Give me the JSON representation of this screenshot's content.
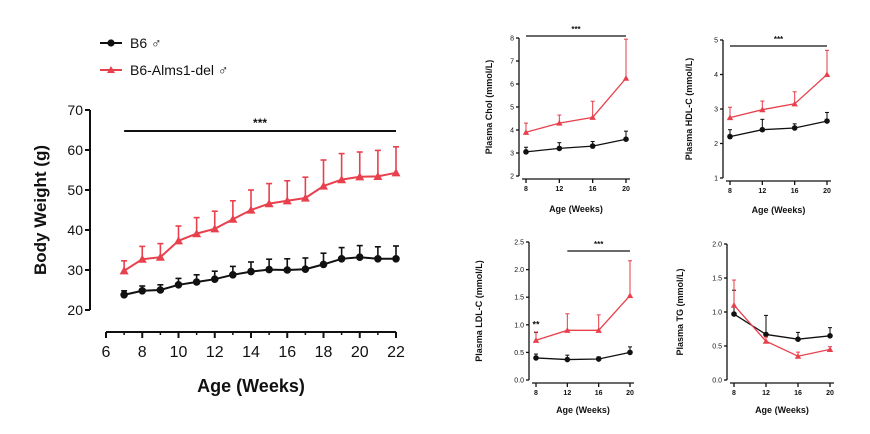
{
  "colors": {
    "b6": "#111111",
    "del": "#e8414d",
    "axis": "#111111"
  },
  "legend": {
    "b6": "B6 ♂",
    "del": "B6-Alms1-del ♂"
  },
  "chart_data": [
    {
      "id": "bw",
      "type": "line",
      "xlabel": "Age (Weeks)",
      "ylabel": "Body Weight (g)",
      "xlim": [
        6,
        22
      ],
      "ylim": [
        20,
        70
      ],
      "xticks": [
        6,
        8,
        10,
        12,
        14,
        16,
        18,
        20,
        22
      ],
      "yticks": [
        20,
        30,
        40,
        50,
        60,
        70
      ],
      "annotations": [
        {
          "text": "***",
          "x1": 7,
          "x2": 22
        }
      ],
      "series": [
        {
          "name": "B6 ♂",
          "key": "b6",
          "x": [
            7,
            8,
            9,
            10,
            11,
            12,
            13,
            14,
            15,
            16,
            17,
            18,
            19,
            20,
            21,
            22
          ],
          "y": [
            23.8,
            24.8,
            25,
            26.3,
            27,
            27.7,
            28.8,
            29.6,
            30.1,
            30,
            30.2,
            31.4,
            32.8,
            33.2,
            32.8,
            32.8
          ],
          "err": [
            1,
            1.2,
            1.3,
            1.6,
            1.8,
            2,
            2.1,
            2.4,
            2.6,
            2.8,
            2.8,
            2.8,
            2.8,
            2.9,
            3,
            3.2
          ]
        },
        {
          "name": "B6-Alms1-del ♂",
          "key": "del",
          "x": [
            7,
            8,
            9,
            10,
            11,
            12,
            13,
            14,
            15,
            16,
            17,
            18,
            19,
            20,
            21,
            22
          ],
          "y": [
            29.8,
            32.7,
            33.2,
            37.3,
            39.1,
            40.3,
            42.7,
            45,
            46.6,
            47.3,
            48,
            51,
            52.6,
            53.3,
            53.4,
            54.3
          ],
          "err": [
            2.5,
            3.2,
            3.4,
            3.7,
            4,
            4.4,
            4.6,
            5,
            5,
            5,
            5.2,
            6.5,
            6.5,
            6.2,
            6.5,
            6.5
          ]
        }
      ]
    },
    {
      "id": "chol",
      "type": "line",
      "xlabel": "Age (Weeks)",
      "ylabel": "Plasma Chol (mmol/L)",
      "xlim": [
        8,
        20
      ],
      "ylim": [
        2,
        8
      ],
      "xticks": [
        8,
        12,
        16,
        20
      ],
      "yticks": [
        2,
        3,
        4,
        5,
        6,
        7,
        8
      ],
      "annotations": [
        {
          "text": "***",
          "x1": 8,
          "x2": 20
        }
      ],
      "series": [
        {
          "name": "B6 ♂",
          "key": "b6",
          "x": [
            8,
            12,
            16,
            20
          ],
          "y": [
            3.05,
            3.2,
            3.3,
            3.6
          ],
          "err": [
            0.2,
            0.25,
            0.2,
            0.35
          ]
        },
        {
          "name": "B6-Alms1-del ♂",
          "key": "del",
          "x": [
            8,
            12,
            16,
            20
          ],
          "y": [
            3.9,
            4.3,
            4.55,
            6.25
          ],
          "err": [
            0.4,
            0.35,
            0.7,
            1.7
          ]
        }
      ]
    },
    {
      "id": "hdl",
      "type": "line",
      "xlabel": "Age (Weeks)",
      "ylabel": "Plasma HDL-C (mmol/L)",
      "xlim": [
        8,
        20
      ],
      "ylim": [
        1,
        5
      ],
      "xticks": [
        8,
        12,
        16,
        20
      ],
      "yticks": [
        1,
        2,
        3,
        4,
        5
      ],
      "annotations": [
        {
          "text": "***",
          "x1": 8,
          "x2": 20
        }
      ],
      "series": [
        {
          "name": "B6 ♂",
          "key": "b6",
          "x": [
            8,
            12,
            16,
            20
          ],
          "y": [
            2.2,
            2.4,
            2.45,
            2.65
          ],
          "err": [
            0.2,
            0.3,
            0.12,
            0.25
          ]
        },
        {
          "name": "B6-Alms1-del ♂",
          "key": "del",
          "x": [
            8,
            12,
            16,
            20
          ],
          "y": [
            2.75,
            2.98,
            3.15,
            4.0
          ],
          "err": [
            0.3,
            0.25,
            0.35,
            0.7
          ]
        }
      ]
    },
    {
      "id": "ldl",
      "type": "line",
      "xlabel": "Age (Weeks)",
      "ylabel": "Plasma LDL-C (mmol/L)",
      "xlim": [
        8,
        20
      ],
      "ylim": [
        0,
        2.5
      ],
      "xticks": [
        8,
        12,
        16,
        20
      ],
      "yticks": [
        "0.0",
        "0.5",
        "1.0",
        "1.5",
        "2.0",
        "2.5"
      ],
      "annotations": [
        {
          "text": "***",
          "x1": 12,
          "x2": 20
        },
        {
          "text": "**",
          "x": 8,
          "y": 0.95
        }
      ],
      "series": [
        {
          "name": "B6 ♂",
          "key": "b6",
          "x": [
            8,
            12,
            16,
            20
          ],
          "y": [
            0.4,
            0.37,
            0.38,
            0.5
          ],
          "err": [
            0.07,
            0.08,
            0.04,
            0.1
          ]
        },
        {
          "name": "B6-Alms1-del ♂",
          "key": "del",
          "x": [
            8,
            12,
            16,
            20
          ],
          "y": [
            0.72,
            0.9,
            0.9,
            1.53
          ],
          "err": [
            0.15,
            0.3,
            0.28,
            0.63
          ]
        }
      ]
    },
    {
      "id": "tg",
      "type": "line",
      "xlabel": "Age (Weeks)",
      "ylabel": "Plasma TG (mmol/L)",
      "xlim": [
        8,
        20
      ],
      "ylim": [
        0,
        2
      ],
      "xticks": [
        8,
        12,
        16,
        20
      ],
      "yticks": [
        "0.0",
        "0.5",
        "1.0",
        "1.5",
        "2.0"
      ],
      "annotations": [],
      "series": [
        {
          "name": "B6 ♂",
          "key": "b6",
          "x": [
            8,
            12,
            16,
            20
          ],
          "y": [
            0.97,
            0.67,
            0.6,
            0.65
          ],
          "err": [
            0.35,
            0.28,
            0.1,
            0.12
          ]
        },
        {
          "name": "B6-Alms1-del ♂",
          "key": "del",
          "x": [
            8,
            12,
            16,
            20
          ],
          "y": [
            1.1,
            0.57,
            0.35,
            0.45
          ],
          "err": [
            0.37,
            0.06,
            0.06,
            0.04
          ]
        }
      ]
    }
  ]
}
